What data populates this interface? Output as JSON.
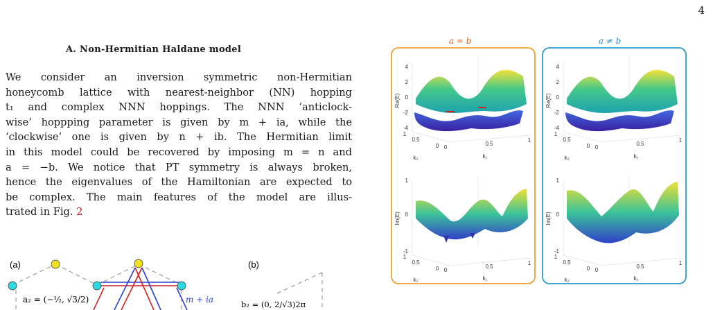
{
  "page_number": "4",
  "section": {
    "heading": "A.    Non-Hermitian Haldane model",
    "lines": [
      "We consider an inversion symmetric non-Hermitian",
      "honeycomb lattice with nearest-neighbor (NN) hopping",
      "t₁ and complex NNN hoppings.  The NNN ‘anticlock-",
      "wise’ hoppping parameter is given by m + ia, while the",
      "‘clockwise’ one is given by n + ib. The Hermitian limit",
      "in this model could be recovered by imposing m = n and",
      "a = −b.  We notice that PT symmetry is always broken,",
      "hence the eigenvalues of the Hamiltonian are expected to",
      "be complex.  The main features of the model are illus-"
    ],
    "last_line_prefix": "trated in Fig. ",
    "last_line_ref": "2"
  },
  "figure_left": {
    "label_a": "(a)",
    "label_b": "(b)",
    "a2_label": "a₂ = (−½, √3/2)",
    "hopping_label": "m + ia",
    "b2_label": "b₂ = (0, 2/√3)2π"
  },
  "figure_right": {
    "title_left": "a = b",
    "title_right": "a ≠ b",
    "ylabel_top": "Re(E)",
    "ylabel_bottom": "Im(E)",
    "xlabel": "k₁",
    "depth_label": "k₂",
    "top_ticks": [
      "4",
      "2",
      "0",
      "-2",
      "-4"
    ],
    "bottom_ticks": [
      "1",
      "0",
      "-1"
    ],
    "k1_ticks": [
      "0",
      "0.5",
      "1"
    ],
    "k2_ticks": [
      "1",
      "0.5",
      "0"
    ],
    "colors": {
      "left_box": "#f0a030",
      "right_box": "#2a9bc7",
      "title_left": "#d9601f",
      "title_right": "#2a8fc0"
    }
  }
}
